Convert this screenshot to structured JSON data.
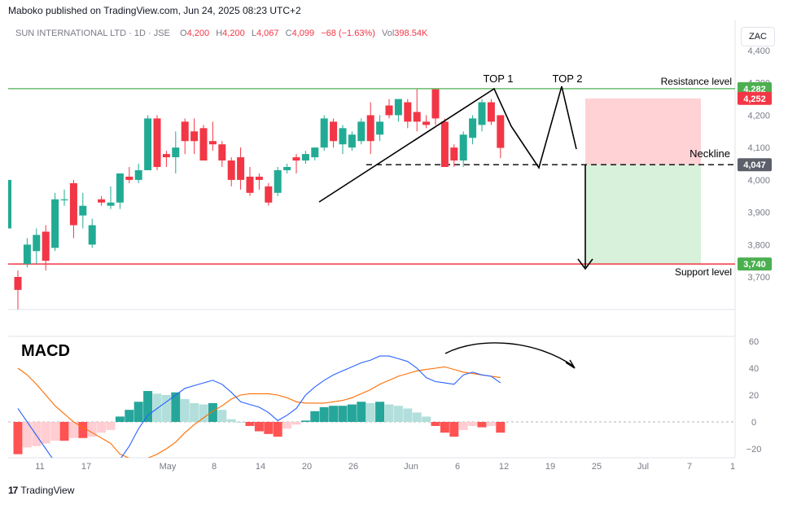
{
  "header": {
    "published": "Maboko published on TradingView.com, Jun 24, 2025 08:23 UTC+2",
    "symbol": "SUN INTERNATIONAL LTD · 1D · JSE",
    "ohlc": {
      "o_label": "O",
      "o": "4,200",
      "h_label": "H",
      "h": "4,200",
      "l_label": "L",
      "l": "4,067",
      "c_label": "C",
      "c": "4,099",
      "change": "−68 (−1.63%)",
      "vol_label": "Vol",
      "vol": "398.54K"
    },
    "currency_button": "ZAC"
  },
  "colors": {
    "up": "#22ab94",
    "down": "#f23645",
    "hist_up_strong": "#26a69a",
    "hist_up_weak": "#b2dfdb",
    "hist_down_strong": "#ff5252",
    "hist_down_weak": "#ffcdd2",
    "macd_line": "#2962ff",
    "signal_line": "#ff6d00",
    "resistance": "#4caf50",
    "support": "#f23645",
    "stop_zone": "#ffcdd2",
    "target_zone": "#d4efd6"
  },
  "chart_data": [
    {
      "type": "candlestick",
      "title": "SUN INTERNATIONAL LTD · 1D · JSE",
      "x_tick_labels": [
        "11",
        "17",
        "May",
        "8",
        "14",
        "20",
        "26",
        "Jun",
        "6",
        "12",
        "19",
        "25",
        "Jul",
        "7",
        "1"
      ],
      "y_tick_labels": [
        "4,400",
        "4,300",
        "4,200",
        "4,100",
        "4,000",
        "3,900",
        "3,800",
        "3,700"
      ],
      "ylim": [
        3650,
        4420
      ],
      "candles": [
        {
          "o": 3700,
          "h": 3720,
          "l": 3600,
          "c": 3660
        },
        {
          "o": 3740,
          "h": 3820,
          "l": 3730,
          "c": 3800
        },
        {
          "o": 3780,
          "h": 3850,
          "l": 3740,
          "c": 3830
        },
        {
          "o": 3840,
          "h": 3860,
          "l": 3720,
          "c": 3750
        },
        {
          "o": 3790,
          "h": 3960,
          "l": 3780,
          "c": 3940
        },
        {
          "o": 3940,
          "h": 3970,
          "l": 3920,
          "c": 3940
        },
        {
          "o": 3990,
          "h": 4000,
          "l": 3820,
          "c": 3860
        },
        {
          "o": 3890,
          "h": 3960,
          "l": 3850,
          "c": 3920
        },
        {
          "o": 3800,
          "h": 3880,
          "l": 3790,
          "c": 3860
        },
        {
          "o": 3940,
          "h": 3950,
          "l": 3920,
          "c": 3930
        },
        {
          "o": 3920,
          "h": 3980,
          "l": 3910,
          "c": 3930
        },
        {
          "o": 3930,
          "h": 4020,
          "l": 3910,
          "c": 4020
        },
        {
          "o": 4010,
          "h": 4040,
          "l": 3990,
          "c": 4000
        },
        {
          "o": 4000,
          "h": 4050,
          "l": 3990,
          "c": 4030
        },
        {
          "o": 4030,
          "h": 4200,
          "l": 4030,
          "c": 4190
        },
        {
          "o": 4190,
          "h": 4200,
          "l": 4030,
          "c": 4040
        },
        {
          "o": 4080,
          "h": 4090,
          "l": 4040,
          "c": 4070
        },
        {
          "o": 4070,
          "h": 4150,
          "l": 4020,
          "c": 4100
        },
        {
          "o": 4180,
          "h": 4190,
          "l": 4080,
          "c": 4120
        },
        {
          "o": 4150,
          "h": 4190,
          "l": 4080,
          "c": 4120
        },
        {
          "o": 4160,
          "h": 4170,
          "l": 4060,
          "c": 4060
        },
        {
          "o": 4120,
          "h": 4180,
          "l": 4090,
          "c": 4110
        },
        {
          "o": 4110,
          "h": 4120,
          "l": 4040,
          "c": 4060
        },
        {
          "o": 4060,
          "h": 4070,
          "l": 3980,
          "c": 4000
        },
        {
          "o": 4070,
          "h": 4100,
          "l": 3970,
          "c": 4000
        },
        {
          "o": 4010,
          "h": 4040,
          "l": 3950,
          "c": 3960
        },
        {
          "o": 4010,
          "h": 4020,
          "l": 3970,
          "c": 4000
        },
        {
          "o": 3980,
          "h": 3990,
          "l": 3920,
          "c": 3930
        },
        {
          "o": 3960,
          "h": 4040,
          "l": 3950,
          "c": 4030
        },
        {
          "o": 4030,
          "h": 4050,
          "l": 4020,
          "c": 4040
        },
        {
          "o": 4070,
          "h": 4080,
          "l": 4020,
          "c": 4060
        },
        {
          "o": 4060,
          "h": 4090,
          "l": 4050,
          "c": 4080
        },
        {
          "o": 4070,
          "h": 4100,
          "l": 4060,
          "c": 4100
        },
        {
          "o": 4100,
          "h": 4200,
          "l": 4090,
          "c": 4190
        },
        {
          "o": 4180,
          "h": 4190,
          "l": 4100,
          "c": 4120
        },
        {
          "o": 4110,
          "h": 4170,
          "l": 4080,
          "c": 4160
        },
        {
          "o": 4100,
          "h": 4150,
          "l": 4090,
          "c": 4140
        },
        {
          "o": 4120,
          "h": 4190,
          "l": 4110,
          "c": 4180
        },
        {
          "o": 4200,
          "h": 4240,
          "l": 4080,
          "c": 4120
        },
        {
          "o": 4140,
          "h": 4200,
          "l": 4120,
          "c": 4180
        },
        {
          "o": 4230,
          "h": 4250,
          "l": 4190,
          "c": 4200
        },
        {
          "o": 4200,
          "h": 4250,
          "l": 4180,
          "c": 4250
        },
        {
          "o": 4240,
          "h": 4250,
          "l": 4160,
          "c": 4180
        },
        {
          "o": 4210,
          "h": 4280,
          "l": 4150,
          "c": 4180
        },
        {
          "o": 4180,
          "h": 4200,
          "l": 4160,
          "c": 4170
        },
        {
          "o": 4280,
          "h": 4280,
          "l": 4170,
          "c": 4190
        },
        {
          "o": 4180,
          "h": 4190,
          "l": 4040,
          "c": 4040
        },
        {
          "o": 4100,
          "h": 4110,
          "l": 4040,
          "c": 4060
        },
        {
          "o": 4060,
          "h": 4150,
          "l": 4040,
          "c": 4140
        },
        {
          "o": 4130,
          "h": 4200,
          "l": 4110,
          "c": 4190
        },
        {
          "o": 4170,
          "h": 4250,
          "l": 4150,
          "c": 4240
        },
        {
          "o": 4240,
          "h": 4250,
          "l": 4170,
          "c": 4180
        },
        {
          "o": 4200,
          "h": 4200,
          "l": 4067,
          "c": 4099
        }
      ],
      "price_labels": [
        {
          "text": "4,282",
          "value": 4282,
          "kind": "resistance"
        },
        {
          "text": "4,252",
          "value": 4252,
          "kind": "stop"
        },
        {
          "text": "4,047",
          "value": 4047,
          "kind": "neckline"
        },
        {
          "text": "3,740",
          "value": 3740,
          "kind": "support"
        }
      ],
      "levels": {
        "resistance": 4282,
        "neckline": 4047,
        "support": 3740,
        "stop": 4252
      },
      "annotations": [
        "TOP 1",
        "TOP 2",
        "Resistance level",
        "Neckline",
        "Support level"
      ]
    },
    {
      "type": "line+bar",
      "title": "MACD",
      "y_tick_labels": [
        "60",
        "40",
        "20",
        "0",
        "−20"
      ],
      "ylim": [
        -25,
        62
      ],
      "histogram": [
        -24,
        -19,
        -18,
        -16,
        -14,
        -14,
        -12,
        -12,
        -11,
        -8,
        -6,
        4,
        9,
        15,
        23,
        21,
        20,
        22,
        17,
        14,
        13,
        14,
        9,
        2,
        0,
        -3,
        -7,
        -9,
        -11,
        -5,
        -2,
        1,
        8,
        11,
        12,
        12,
        13,
        15,
        14,
        15,
        13,
        12,
        10,
        7,
        4,
        -3,
        -8,
        -11,
        -6,
        -3,
        -4,
        -3,
        -8
      ],
      "macd": [
        10,
        0,
        -10,
        -20,
        -30,
        -35,
        -40,
        -42,
        -43,
        -42,
        -40,
        -28,
        -18,
        -5,
        5,
        10,
        15,
        20,
        25,
        27,
        29,
        31,
        28,
        22,
        15,
        13,
        11,
        7,
        1,
        5,
        10,
        20,
        26,
        31,
        35,
        38,
        41,
        44,
        46,
        49,
        49,
        47,
        45,
        40,
        33,
        30,
        29,
        28,
        35,
        37,
        35,
        34,
        29
      ],
      "signal": [
        40,
        35,
        28,
        20,
        12,
        6,
        0,
        -4,
        -8,
        -12,
        -16,
        -24,
        -27,
        -28,
        -27,
        -24,
        -20,
        -15,
        -8,
        -2,
        3,
        8,
        12,
        17,
        20,
        21,
        21,
        21,
        20,
        18,
        15,
        14,
        14,
        14,
        15,
        16,
        18,
        21,
        24,
        28,
        31,
        34,
        36,
        38,
        39,
        40,
        41,
        39,
        37,
        36,
        35,
        34,
        33
      ]
    }
  ]
}
